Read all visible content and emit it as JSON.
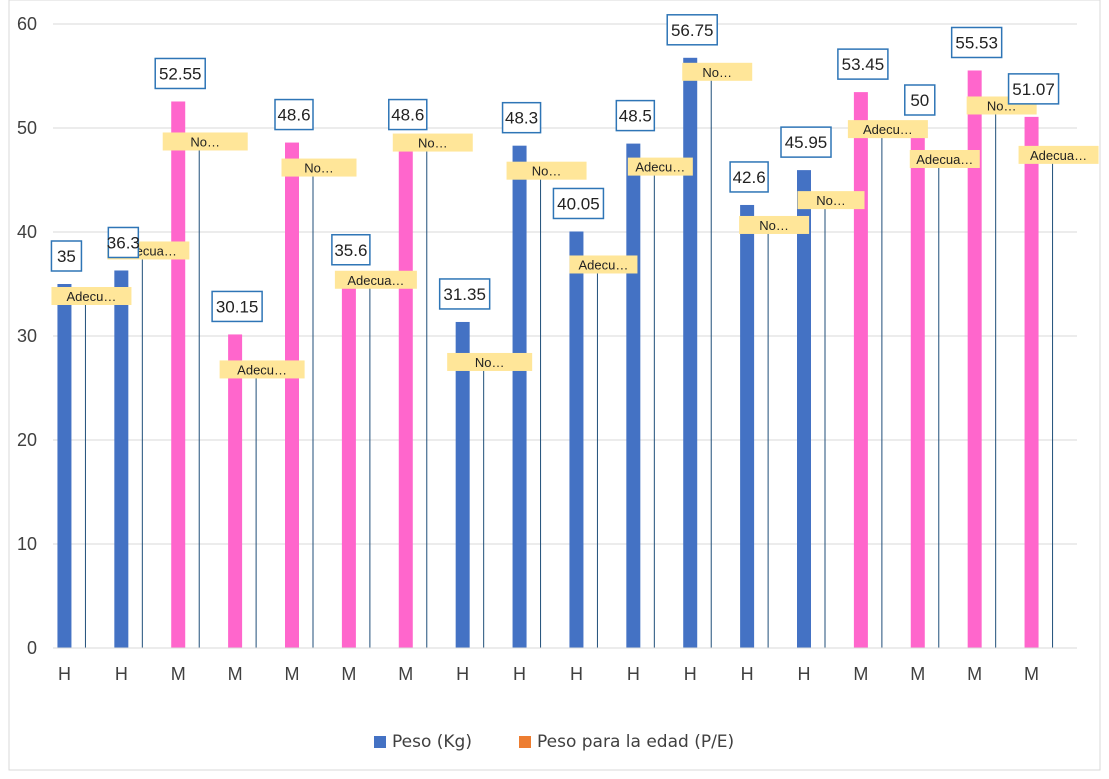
{
  "chart_data": {
    "type": "bar",
    "categories": [
      "H",
      "H",
      "M",
      "M",
      "M",
      "M",
      "M",
      "H",
      "H",
      "H",
      "H",
      "H",
      "H",
      "H",
      "M",
      "M",
      "M",
      "M"
    ],
    "ylim": [
      0,
      60
    ],
    "yticks": [
      "0",
      "10",
      "20",
      "30",
      "40",
      "50",
      "60"
    ],
    "grid": true,
    "legend_position": "bottom",
    "colors": {
      "H": "#4472C4",
      "M": "#FF66CC",
      "series2": "#ED7D31",
      "value_label_border": "#2E75B6",
      "category_label_fill": "#FFE699",
      "grid": "#D9D9D9",
      "leader_line": "#1F4E79"
    },
    "series": [
      {
        "name": "Peso (Kg)",
        "values": [
          35,
          36.3,
          52.55,
          30.15,
          48.6,
          35.6,
          48.6,
          31.35,
          48.3,
          40.05,
          48.5,
          56.75,
          42.6,
          45.95,
          53.45,
          50,
          55.53,
          51.07
        ],
        "labels": [
          "35",
          "36.3",
          "52.55",
          "30.15",
          "48.6",
          "35.6",
          "48.6",
          "31.35",
          "48.3",
          "40.05",
          "48.5",
          "56.75",
          "42.6",
          "45.95",
          "53.45",
          "50",
          "55.53",
          "51.07"
        ]
      },
      {
        "name": "Peso para la edad (P/E)",
        "category_labels": [
          "Adecu…",
          "Adecua…",
          "No…",
          "Adecu…",
          "No…",
          "Adecua…",
          "No…",
          "No…",
          "No…",
          "Adecu…",
          "Adecu…",
          "No…",
          "No…",
          "No…",
          "Adecu…",
          "Adecua…",
          "No…",
          "Adecua…"
        ]
      }
    ]
  }
}
